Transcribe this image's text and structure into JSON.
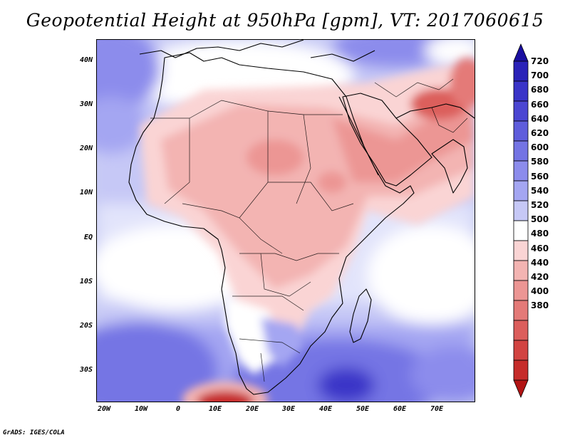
{
  "title": "Geopotential Height at 950hPa [gpm], VT: 2017060615",
  "footer": "GrADS: IGES/COLA",
  "lat_labels": [
    "40N",
    "30N",
    "20N",
    "10N",
    "EQ",
    "10S",
    "20S",
    "30S"
  ],
  "lon_labels": [
    "20W",
    "10W",
    "0",
    "10E",
    "20E",
    "30E",
    "40E",
    "50E",
    "60E",
    "70E"
  ],
  "colorbar": {
    "levels": [
      "720",
      "700",
      "680",
      "660",
      "640",
      "620",
      "600",
      "580",
      "560",
      "540",
      "520",
      "500",
      "480",
      "460",
      "440",
      "420",
      "400",
      "380"
    ],
    "colors": [
      "#1a0fa0",
      "#2a22b8",
      "#3a34c8",
      "#4b46d2",
      "#5f5ddc",
      "#7474e4",
      "#8c8cec",
      "#a4a6f2",
      "#c6c8f6",
      "#ffffff",
      "#fad4d4",
      "#f3b4b2",
      "#ec9694",
      "#e47a78",
      "#dc5e5c",
      "#d24442",
      "#c62c2a",
      "#b21414"
    ]
  },
  "map": {
    "region": "Africa",
    "domain": {
      "lon_min": -23,
      "lon_max": 80,
      "lat_min": -37,
      "lat_max": 45
    },
    "variable": "Geopotential Height",
    "level_hPa": 950,
    "units": "gpm",
    "valid_time": "2017060615"
  }
}
